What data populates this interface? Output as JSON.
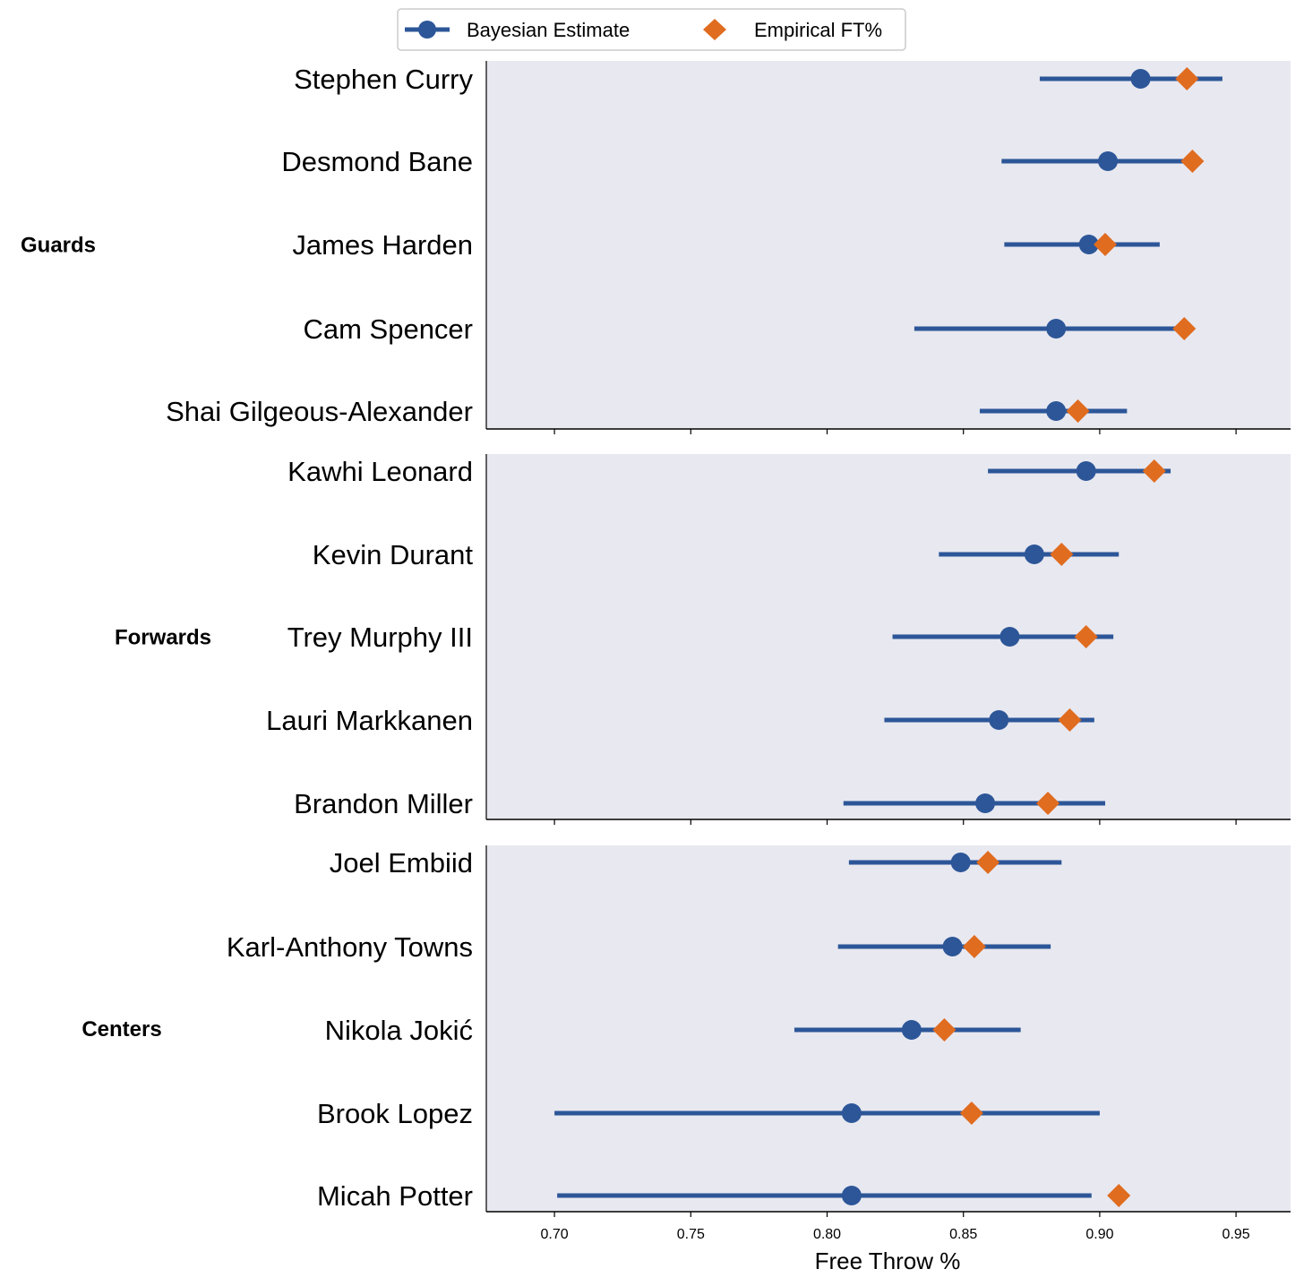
{
  "chart_data": {
    "type": "scatter",
    "subtype": "dot-and-interval",
    "xlabel": "Free Throw %",
    "xlim": [
      0.675,
      0.97
    ],
    "xticks": [
      "0.70",
      "0.75",
      "0.80",
      "0.85",
      "0.90",
      "0.95"
    ],
    "xtick_values": [
      0.7,
      0.75,
      0.8,
      0.85,
      0.9,
      0.95
    ],
    "legend": {
      "placement": "top-center",
      "entries": [
        {
          "name": "Bayesian Estimate",
          "marker": "circle-with-line",
          "color": "#2c5698"
        },
        {
          "name": "Empirical FT%",
          "marker": "diamond",
          "color": "#e06c1f"
        }
      ]
    },
    "colors": {
      "estimate": "#2c5698",
      "empirical": "#e06c1f",
      "panel_bg": "#e8e8f0"
    },
    "groups": [
      {
        "name": "Guards",
        "players": [
          {
            "name": "Stephen Curry",
            "estimate": 0.915,
            "low": 0.878,
            "high": 0.945,
            "empirical": 0.932
          },
          {
            "name": "Desmond Bane",
            "estimate": 0.903,
            "low": 0.864,
            "high": 0.933,
            "empirical": 0.934
          },
          {
            "name": "James Harden",
            "estimate": 0.896,
            "low": 0.865,
            "high": 0.922,
            "empirical": 0.902
          },
          {
            "name": "Cam Spencer",
            "estimate": 0.884,
            "low": 0.832,
            "high": 0.93,
            "empirical": 0.931
          },
          {
            "name": "Shai Gilgeous-Alexander",
            "estimate": 0.884,
            "low": 0.856,
            "high": 0.91,
            "empirical": 0.892
          }
        ]
      },
      {
        "name": "Forwards",
        "players": [
          {
            "name": "Kawhi Leonard",
            "estimate": 0.895,
            "low": 0.859,
            "high": 0.926,
            "empirical": 0.92
          },
          {
            "name": "Kevin Durant",
            "estimate": 0.876,
            "low": 0.841,
            "high": 0.907,
            "empirical": 0.886
          },
          {
            "name": "Trey Murphy III",
            "estimate": 0.867,
            "low": 0.824,
            "high": 0.905,
            "empirical": 0.895
          },
          {
            "name": "Lauri Markkanen",
            "estimate": 0.863,
            "low": 0.821,
            "high": 0.898,
            "empirical": 0.889
          },
          {
            "name": "Brandon Miller",
            "estimate": 0.858,
            "low": 0.806,
            "high": 0.902,
            "empirical": 0.881
          }
        ]
      },
      {
        "name": "Centers",
        "players": [
          {
            "name": "Joel Embiid",
            "estimate": 0.849,
            "low": 0.808,
            "high": 0.886,
            "empirical": 0.859
          },
          {
            "name": "Karl-Anthony Towns",
            "estimate": 0.846,
            "low": 0.804,
            "high": 0.882,
            "empirical": 0.854
          },
          {
            "name": "Nikola Jokić",
            "estimate": 0.831,
            "low": 0.788,
            "high": 0.871,
            "empirical": 0.843
          },
          {
            "name": "Brook Lopez",
            "estimate": 0.809,
            "low": 0.7,
            "high": 0.9,
            "empirical": 0.853
          },
          {
            "name": "Micah Potter",
            "estimate": 0.809,
            "low": 0.701,
            "high": 0.897,
            "empirical": 0.907
          }
        ]
      }
    ]
  }
}
